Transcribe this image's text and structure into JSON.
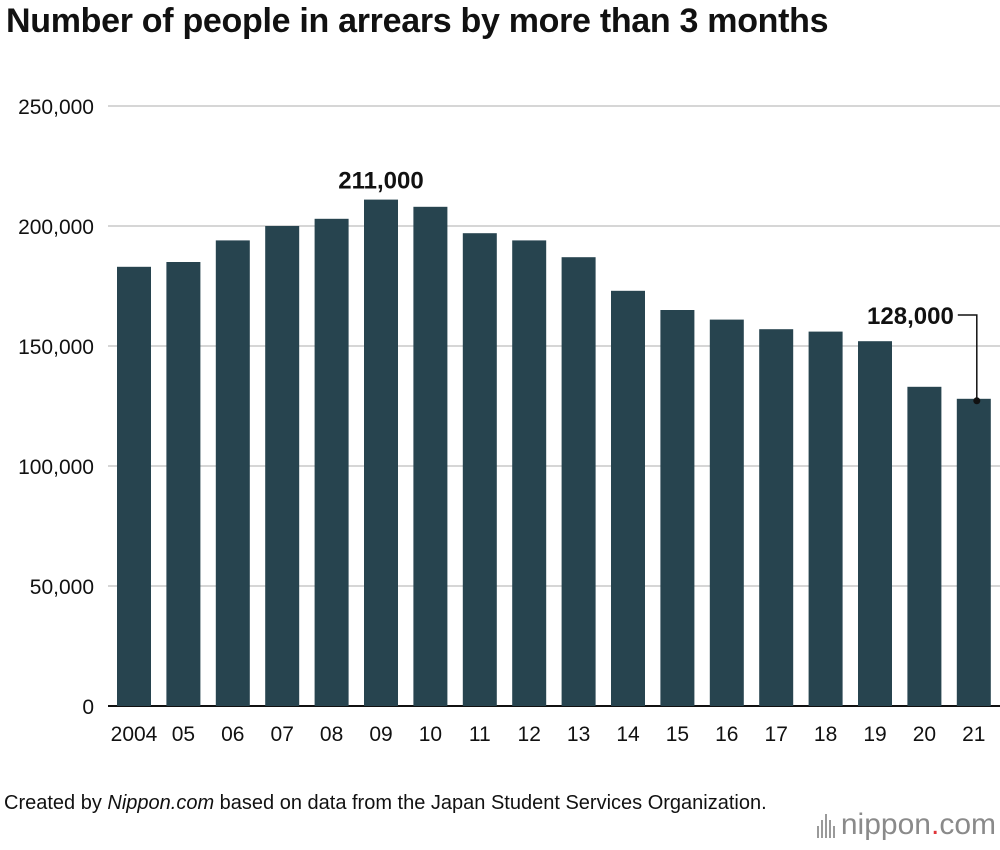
{
  "chart_data": {
    "type": "bar",
    "title": "Number of people in arrears by more than 3 months",
    "categories": [
      "2004",
      "05",
      "06",
      "07",
      "08",
      "09",
      "10",
      "11",
      "12",
      "13",
      "14",
      "15",
      "16",
      "17",
      "18",
      "19",
      "20",
      "21"
    ],
    "values": [
      183000,
      185000,
      194000,
      200000,
      203000,
      211000,
      208000,
      197000,
      194000,
      187000,
      173000,
      165000,
      161000,
      157000,
      156000,
      152000,
      133000,
      128000
    ],
    "ylim": [
      0,
      250000
    ],
    "yticks": [
      0,
      50000,
      100000,
      150000,
      200000,
      250000
    ],
    "ytick_labels": [
      "0",
      "50,000",
      "100,000",
      "150,000",
      "200,000",
      "250,000"
    ],
    "xlabel": "",
    "ylabel": "",
    "grid": true,
    "bar_color": "#27444f",
    "annotations": [
      {
        "category": "09",
        "text": "211,000"
      },
      {
        "category": "21",
        "text": "128,000"
      }
    ]
  },
  "footer": {
    "prefix": "Created by ",
    "site": "Nippon.com",
    "suffix": " based on data from the Japan Student Services Organization."
  },
  "logo": {
    "text_main": "nippon",
    "text_dot": ".",
    "text_end": "com",
    "dot_color": "#e0353a"
  }
}
